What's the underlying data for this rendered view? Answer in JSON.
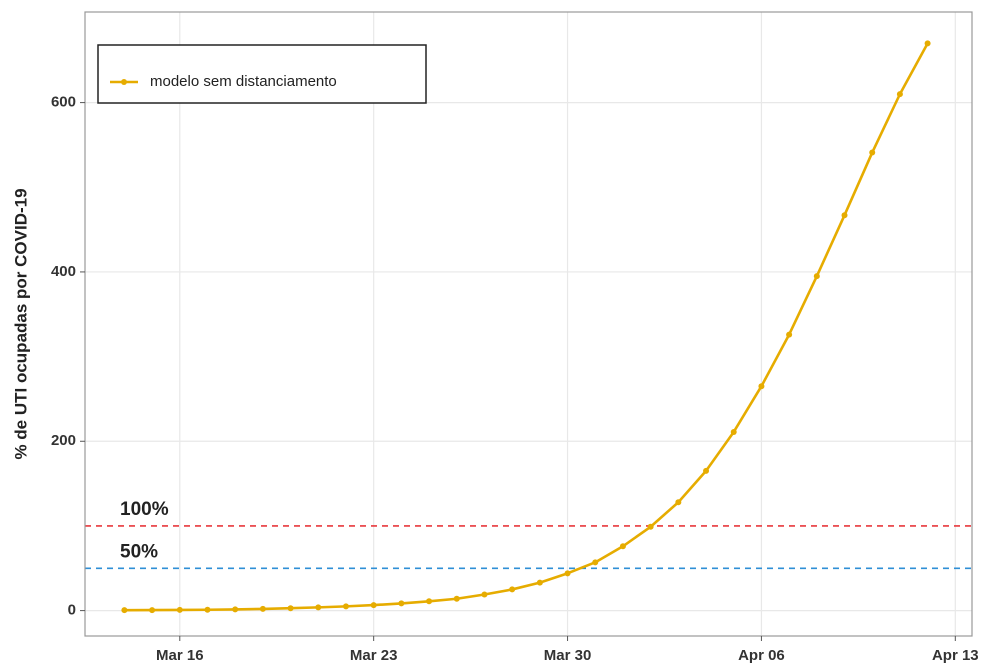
{
  "chart_data": {
    "type": "line",
    "ylabel": "% de UTI ocupadas por COVID-19",
    "x": [
      "Mar 14",
      "Mar 15",
      "Mar 16",
      "Mar 17",
      "Mar 18",
      "Mar 19",
      "Mar 20",
      "Mar 21",
      "Mar 22",
      "Mar 23",
      "Mar 24",
      "Mar 25",
      "Mar 26",
      "Mar 27",
      "Mar 28",
      "Mar 29",
      "Mar 30",
      "Mar 31",
      "Apr 01",
      "Apr 02",
      "Apr 03",
      "Apr 04",
      "Apr 05",
      "Apr 06",
      "Apr 07",
      "Apr 08",
      "Apr 09",
      "Apr 10",
      "Apr 11",
      "Apr 12"
    ],
    "series": [
      {
        "name": "modelo sem distanciamento",
        "color": "#e6ac00",
        "values": [
          0.5,
          0.6,
          0.8,
          1,
          1.4,
          2,
          2.8,
          3.8,
          5,
          6.5,
          8.5,
          11,
          14,
          19,
          25,
          33,
          44,
          57,
          76,
          99,
          128,
          165,
          211,
          265,
          326,
          395,
          467,
          541,
          610,
          670
        ]
      }
    ],
    "xlim": [
      "Mar 12",
      "Apr 14"
    ],
    "xticks": [
      "Mar 16",
      "Mar 23",
      "Mar 30",
      "Apr 06",
      "Apr 13"
    ],
    "ylim": [
      -30,
      707
    ],
    "yticks": [
      0,
      200,
      400,
      600
    ],
    "grid": true,
    "legend": "top-left",
    "hlines": [
      {
        "value": 100,
        "label": "100%",
        "color": "#e8383d"
      },
      {
        "value": 50,
        "label": "50%",
        "color": "#2f8fd6"
      }
    ]
  }
}
